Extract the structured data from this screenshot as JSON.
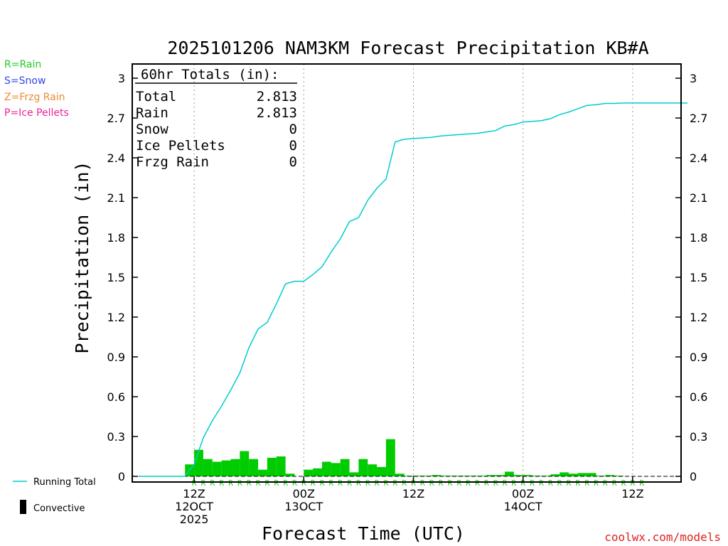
{
  "chart_data": {
    "type": "bar",
    "title": "2025101206 NAM3KM Forecast Precipitation KB#A",
    "xlabel": "Forecast Time (UTC)",
    "ylabel": "Precipitation (in)",
    "ylim": [
      0,
      3.05
    ],
    "yticks": [
      "0",
      "0.3",
      "0.6",
      "0.9",
      "1.2",
      "1.5",
      "1.8",
      "2.1",
      "2.4",
      "2.7",
      "3"
    ],
    "ytick_values": [
      0,
      0.3,
      0.6,
      0.9,
      1.2,
      1.5,
      1.8,
      2.1,
      2.4,
      2.7,
      3
    ],
    "x_ticks": [
      {
        "hour": 6,
        "line1": "12Z",
        "line2": "12OCT",
        "line3": "2025"
      },
      {
        "hour": 18,
        "line1": "00Z",
        "line2": "13OCT",
        "line3": ""
      },
      {
        "hour": 30,
        "line1": "12Z",
        "line2": "",
        "line3": ""
      },
      {
        "hour": 42,
        "line1": "00Z",
        "line2": "14OCT",
        "line3": ""
      },
      {
        "hour": 54,
        "line1": "12Z",
        "line2": "",
        "line3": ""
      }
    ],
    "x_range_hours": [
      0,
      60
    ],
    "totals_box": {
      "header": "60hr Totals (in):",
      "rows": [
        {
          "label": "Total",
          "value": "2.813"
        },
        {
          "label": "Rain",
          "value": "2.813"
        },
        {
          "label": "Snow",
          "value": "0"
        },
        {
          "label": "Ice Pellets",
          "value": "0"
        },
        {
          "label": "Frzg Rain",
          "value": "0"
        }
      ]
    },
    "ptype_legend": [
      {
        "text": "R=Rain",
        "color": "#22cc22"
      },
      {
        "text": "S=Snow",
        "color": "#3344ee"
      },
      {
        "text": "Z=Frzg Rain",
        "color": "#ee8833"
      },
      {
        "text": "P=Ice Pellets",
        "color": "#ee2299"
      }
    ],
    "series_legend": [
      {
        "name": "Running Total",
        "color": "#00cccc",
        "kind": "line"
      },
      {
        "name": "Convective",
        "color": "#000000",
        "kind": "bar"
      }
    ],
    "bar_color": "#00cc00",
    "running_total_color": "#00cccc",
    "ptype_marker": "R",
    "ptype_marker_color": "#22cc22",
    "ptype_start_hour": 6,
    "ptype_end_hour": 55,
    "hourly_series": {
      "name": "Hourly Precipitation",
      "hours": [
        1,
        2,
        3,
        4,
        5,
        6,
        7,
        8,
        9,
        10,
        11,
        12,
        13,
        14,
        15,
        16,
        17,
        18,
        19,
        20,
        21,
        22,
        23,
        24,
        25,
        26,
        27,
        28,
        29,
        30,
        31,
        32,
        33,
        34,
        35,
        36,
        37,
        38,
        39,
        40,
        41,
        42,
        43,
        44,
        45,
        46,
        47,
        48,
        49,
        50,
        51,
        52,
        53,
        54,
        55,
        56,
        57,
        58,
        59,
        60
      ],
      "values": [
        0,
        0,
        0,
        0,
        0,
        0.09,
        0.2,
        0.13,
        0.11,
        0.12,
        0.13,
        0.19,
        0.13,
        0.05,
        0.14,
        0.15,
        0.02,
        0,
        0.05,
        0.06,
        0.11,
        0.1,
        0.13,
        0.03,
        0.13,
        0.09,
        0.07,
        0.28,
        0.02,
        0.005,
        0.005,
        0.005,
        0.01,
        0.005,
        0.005,
        0.005,
        0.005,
        0.005,
        0.01,
        0.01,
        0.035,
        0.01,
        0.01,
        0.005,
        0.005,
        0.015,
        0.03,
        0.02,
        0.025,
        0.025,
        0.005,
        0.01,
        0.005,
        0,
        0,
        0,
        0,
        0,
        0,
        0
      ]
    },
    "running_total": {
      "name": "Running Total",
      "hours": [
        0,
        1,
        2,
        3,
        4,
        5,
        6,
        7,
        8,
        9,
        10,
        11,
        12,
        13,
        14,
        15,
        16,
        17,
        18,
        19,
        20,
        21,
        22,
        23,
        24,
        25,
        26,
        27,
        28,
        29,
        30,
        31,
        32,
        33,
        34,
        35,
        36,
        37,
        38,
        39,
        40,
        41,
        42,
        43,
        44,
        45,
        46,
        47,
        48,
        49,
        50,
        51,
        52,
        53,
        54,
        55,
        56,
        57,
        58,
        59,
        60
      ],
      "values": [
        0,
        0,
        0,
        0,
        0,
        0,
        0.09,
        0.29,
        0.42,
        0.53,
        0.65,
        0.78,
        0.97,
        1.11,
        1.16,
        1.3,
        1.45,
        1.47,
        1.47,
        1.52,
        1.58,
        1.69,
        1.79,
        1.92,
        1.95,
        2.08,
        2.17,
        2.24,
        2.52,
        2.54,
        2.545,
        2.55,
        2.555,
        2.565,
        2.57,
        2.575,
        2.58,
        2.585,
        2.595,
        2.605,
        2.64,
        2.65,
        2.67,
        2.675,
        2.68,
        2.695,
        2.725,
        2.745,
        2.77,
        2.795,
        2.8,
        2.81,
        2.81,
        2.813,
        2.813,
        2.813,
        2.813,
        2.813,
        2.813,
        2.813,
        2.813
      ]
    }
  },
  "credit": "coolwx.com/models"
}
